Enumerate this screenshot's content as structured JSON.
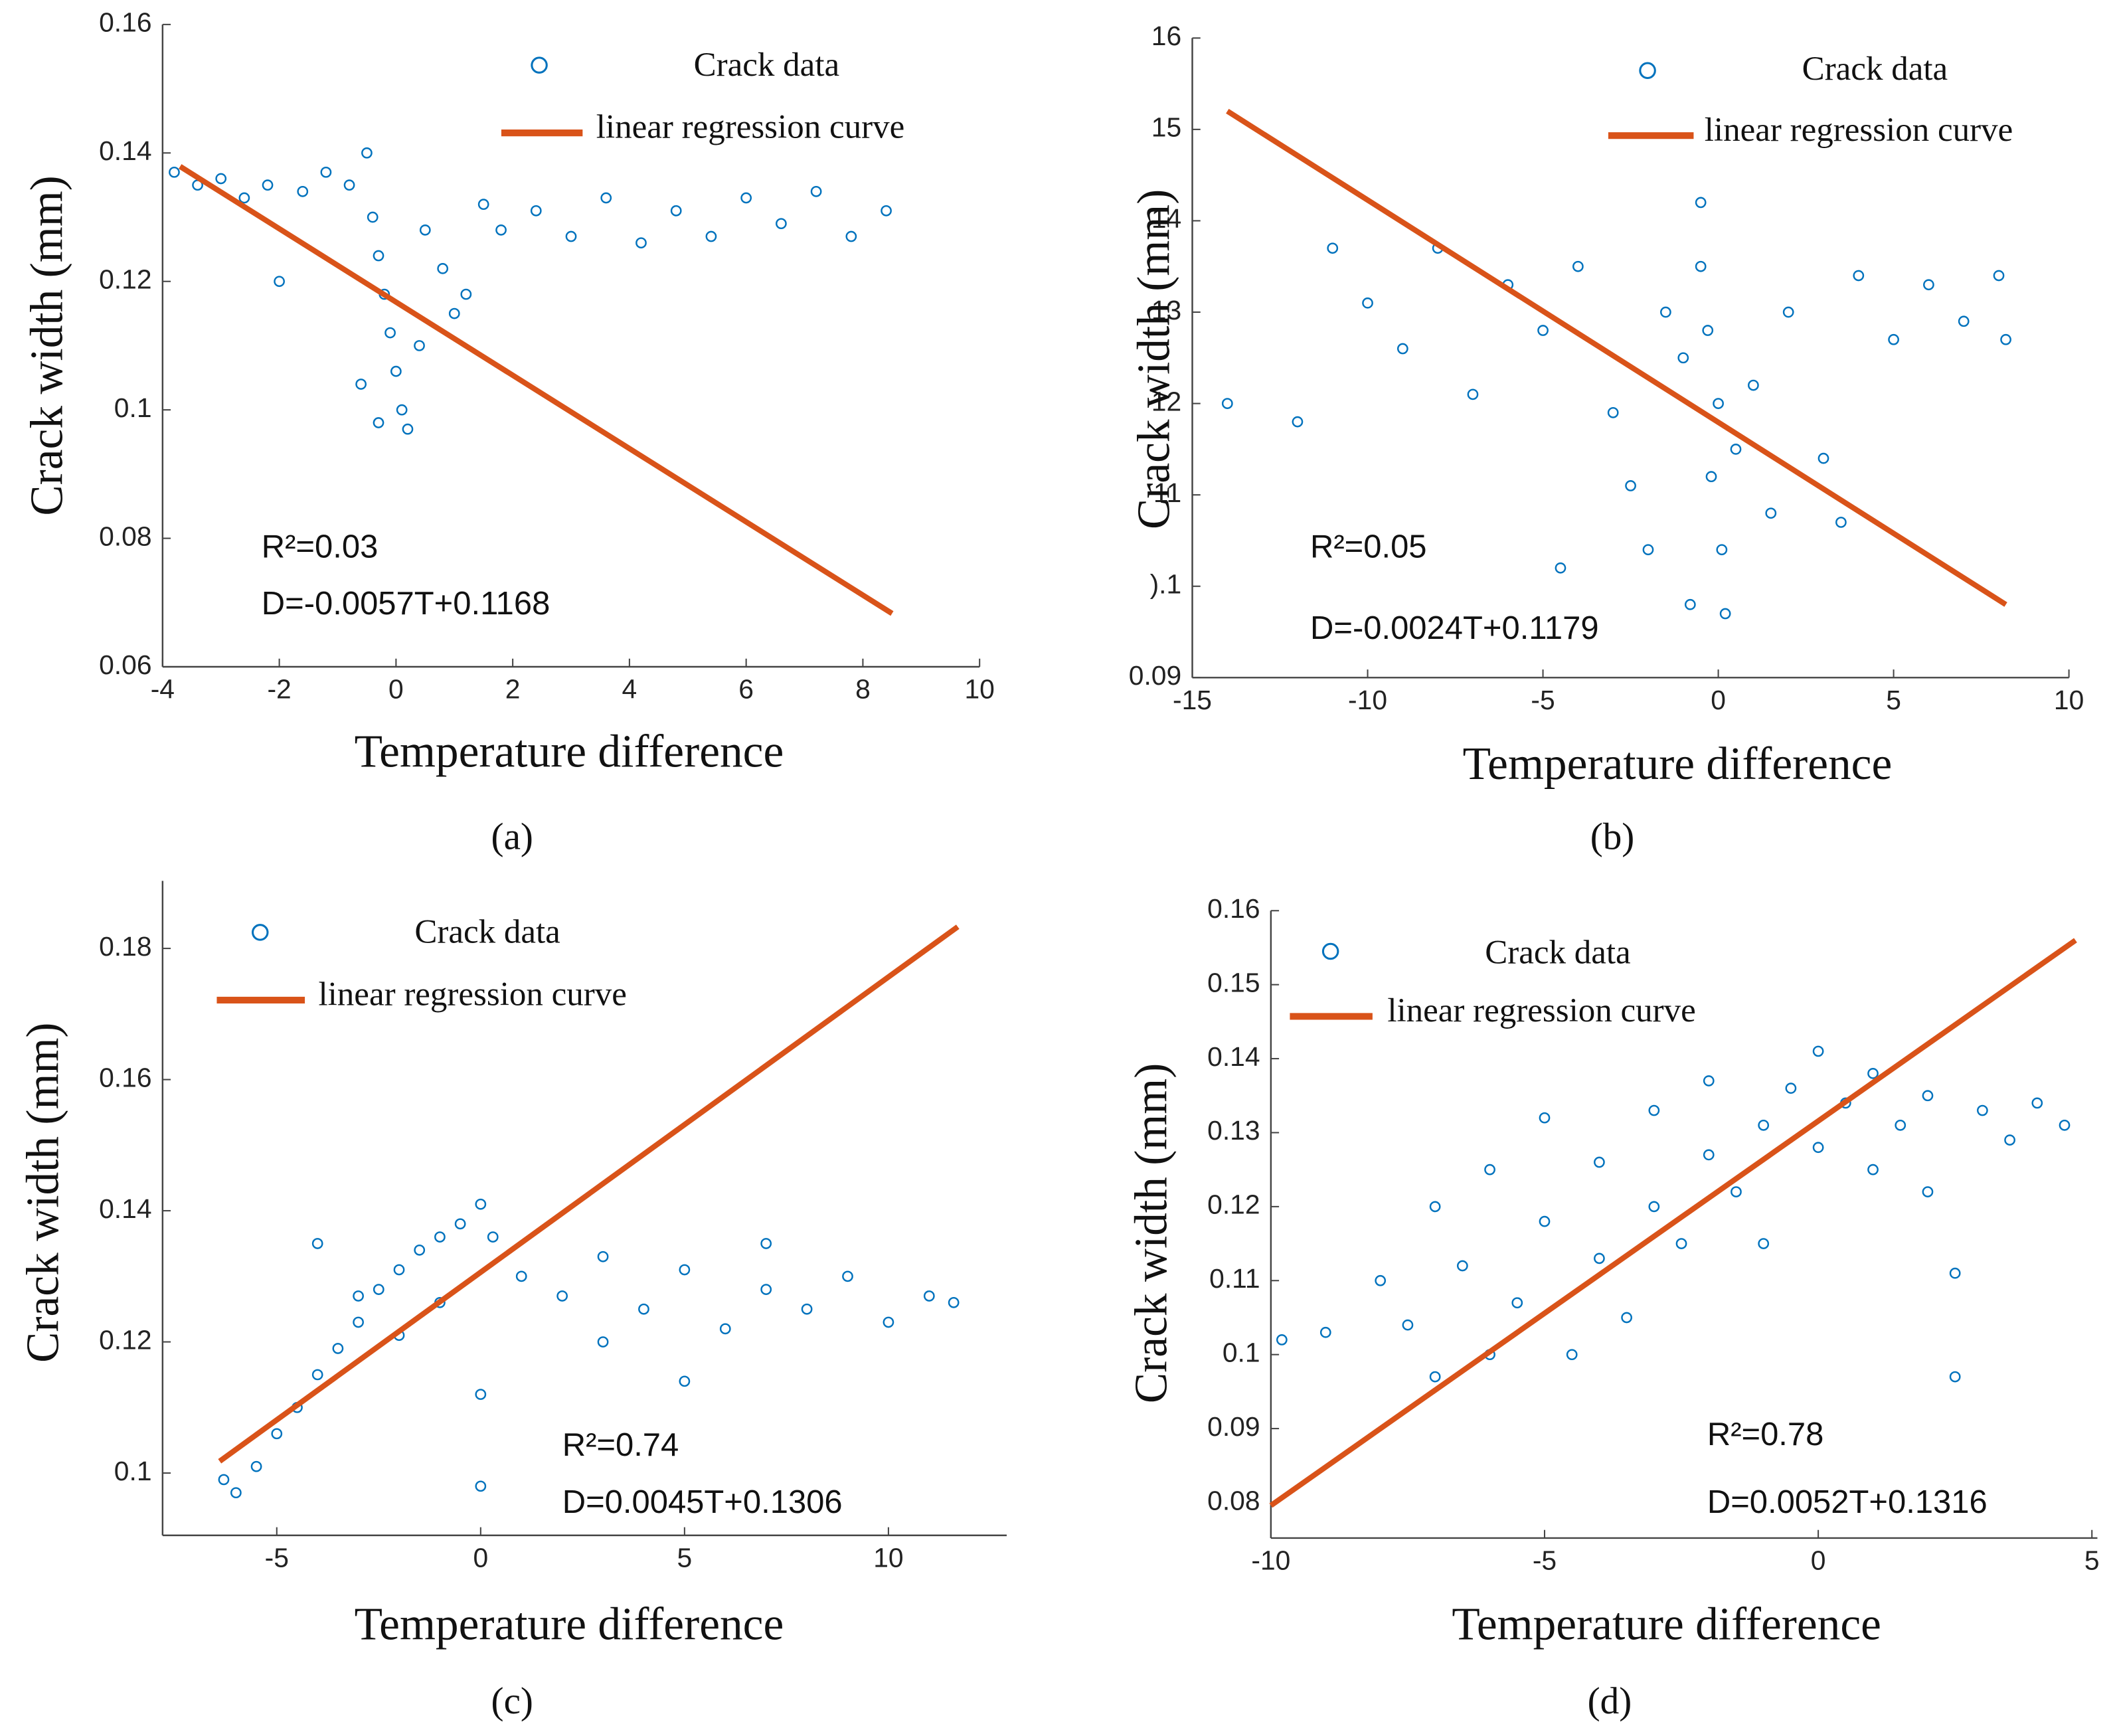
{
  "chart_data": [
    {
      "type": "scatter",
      "caption": "(a)",
      "xlabel": "Temperature difference",
      "ylabel": "Crack width (mm)",
      "annotations": [
        "R²=0.03",
        "D=-0.0057T+0.1168"
      ],
      "xlim": [
        -4,
        10
      ],
      "ylim": [
        0.06,
        0.16
      ],
      "xticks": [
        -4,
        -2,
        0,
        2,
        4,
        6,
        8,
        10
      ],
      "yticks": [
        0.06,
        0.08,
        0.1,
        0.12,
        0.14,
        0.16
      ],
      "series": [
        {
          "name": "Crack data",
          "color": "#0072bd",
          "x": [
            -3.8,
            -3.4,
            -3.0,
            -2.6,
            -2.2,
            -2.0,
            -1.6,
            -1.2,
            -0.8,
            -0.5,
            -0.4,
            -0.3,
            -0.2,
            -0.1,
            0.0,
            0.1,
            0.2,
            -0.3,
            -0.6,
            0.4,
            0.5,
            0.8,
            1.0,
            1.2,
            1.5,
            1.8,
            2.4,
            3.0,
            3.6,
            4.2,
            4.8,
            5.4,
            6.0,
            6.6,
            7.2,
            7.8,
            8.4
          ],
          "values": [
            0.137,
            0.135,
            0.136,
            0.133,
            0.135,
            0.12,
            0.134,
            0.137,
            0.135,
            0.14,
            0.13,
            0.124,
            0.118,
            0.112,
            0.106,
            0.1,
            0.097,
            0.098,
            0.104,
            0.11,
            0.128,
            0.122,
            0.115,
            0.118,
            0.132,
            0.128,
            0.131,
            0.127,
            0.133,
            0.126,
            0.131,
            0.127,
            0.133,
            0.129,
            0.134,
            0.127,
            0.131
          ]
        },
        {
          "name": "linear regression curve",
          "color": "#d95319",
          "x": [
            -3.7,
            8.5
          ],
          "values": [
            0.1379,
            0.0683
          ]
        }
      ]
    },
    {
      "type": "scatter",
      "caption": "(b)",
      "xlabel": "Temperature difference",
      "ylabel": "Crack width (mm)",
      "annotations": [
        "R²=0.05",
        "D=-0.0024T+0.1179"
      ],
      "xlim": [
        -15,
        10
      ],
      "ylim": [
        0.09,
        0.16
      ],
      "xticks": [
        -15,
        -10,
        -5,
        0,
        5,
        10
      ],
      "yticks": [
        0.09,
        {
          "value": 0.1,
          "label": ").1"
        },
        {
          "value": 0.11,
          "label": "11"
        },
        {
          "value": 0.12,
          "label": "12"
        },
        {
          "value": 0.13,
          "label": "13"
        },
        {
          "value": 0.14,
          "label": "14"
        },
        {
          "value": 0.15,
          "label": "15"
        },
        {
          "value": 0.16,
          "label": "16"
        }
      ],
      "series": [
        {
          "name": "Crack data",
          "color": "#0072bd",
          "x": [
            -14,
            -12,
            -11,
            -10,
            -9,
            -8,
            -7,
            -6,
            -5,
            -4.5,
            -4,
            -3,
            -2.5,
            -2,
            -1.5,
            -1,
            -0.5,
            -0.5,
            -0.3,
            0,
            -0.2,
            0.1,
            0.2,
            -0.8,
            0.5,
            1,
            1.5,
            2,
            3,
            3.5,
            4,
            5,
            6,
            7,
            8,
            8.2
          ],
          "values": [
            0.12,
            0.118,
            0.137,
            0.131,
            0.126,
            0.137,
            0.121,
            0.133,
            0.128,
            0.102,
            0.135,
            0.119,
            0.111,
            0.104,
            0.13,
            0.125,
            0.142,
            0.135,
            0.128,
            0.12,
            0.112,
            0.104,
            0.097,
            0.098,
            0.115,
            0.122,
            0.108,
            0.13,
            0.114,
            0.107,
            0.134,
            0.127,
            0.133,
            0.129,
            0.134,
            0.127
          ]
        },
        {
          "name": "linear regression curve",
          "color": "#d95319",
          "x": [
            -14,
            8.2
          ],
          "values": [
            0.152,
            0.098
          ]
        }
      ]
    },
    {
      "type": "scatter",
      "caption": "(c)",
      "xlabel": "Temperature difference",
      "ylabel": "Crack width (mm)",
      "annotations": [
        "R²=0.74",
        "D=0.0045T+0.1306"
      ],
      "xlim": [
        -7.8,
        12.9
      ],
      "ylim": [
        0.0905,
        0.1903
      ],
      "xticks": [
        -5,
        0,
        5,
        10
      ],
      "yticks": [
        0.1,
        0.12,
        0.14,
        0.16,
        0.18
      ],
      "series": [
        {
          "name": "Crack data",
          "color": "#0072bd",
          "x": [
            -6,
            -5.5,
            -5,
            -4.5,
            -4,
            -3.5,
            -3,
            -2.5,
            -2,
            -1.5,
            -1,
            -0.5,
            0,
            0.3,
            -4,
            -3,
            -2,
            -1,
            0,
            0,
            1,
            2,
            3,
            3,
            4,
            5,
            5,
            6,
            7,
            7,
            8,
            9,
            10,
            11,
            11.6,
            -6.3
          ],
          "values": [
            0.097,
            0.101,
            0.106,
            0.11,
            0.115,
            0.119,
            0.123,
            0.128,
            0.131,
            0.134,
            0.136,
            0.138,
            0.141,
            0.136,
            0.135,
            0.127,
            0.121,
            0.126,
            0.112,
            0.098,
            0.13,
            0.127,
            0.133,
            0.12,
            0.125,
            0.131,
            0.114,
            0.122,
            0.128,
            0.135,
            0.125,
            0.13,
            0.123,
            0.127,
            0.126,
            0.099
          ]
        },
        {
          "name": "linear regression curve",
          "color": "#d95319",
          "x": [
            -6.4,
            11.7
          ],
          "values": [
            0.1018,
            0.1833
          ]
        }
      ]
    },
    {
      "type": "scatter",
      "caption": "(d)",
      "xlabel": "Temperature difference",
      "ylabel": "Crack width (mm)",
      "annotations": [
        "R²=0.78",
        "D=0.0052T+0.1316"
      ],
      "xlim": [
        -10,
        5.1
      ],
      "ylim": [
        0.0752,
        0.16
      ],
      "xticks": [
        -10,
        -5,
        0,
        5
      ],
      "yticks": [
        0.08,
        0.09,
        0.1,
        0.11,
        0.12,
        0.13,
        0.14,
        0.15,
        0.16
      ],
      "series": [
        {
          "name": "Crack data",
          "color": "#0072bd",
          "x": [
            -9.8,
            -9,
            -8,
            -7.5,
            -7,
            -7,
            -6.5,
            -6,
            -6,
            -5.5,
            -5,
            -5,
            -4.5,
            -4,
            -4,
            -3.5,
            -3,
            -3,
            -2.5,
            -2,
            -2,
            -1.5,
            -1,
            -1,
            -0.5,
            0,
            0,
            0.5,
            1,
            1,
            1.5,
            2,
            2,
            2.5,
            2.5,
            3,
            3.5,
            4,
            4.5
          ],
          "values": [
            0.102,
            0.103,
            0.11,
            0.104,
            0.097,
            0.12,
            0.112,
            0.1,
            0.125,
            0.107,
            0.118,
            0.132,
            0.1,
            0.113,
            0.126,
            0.105,
            0.12,
            0.133,
            0.115,
            0.127,
            0.137,
            0.122,
            0.131,
            0.115,
            0.136,
            0.141,
            0.128,
            0.134,
            0.138,
            0.125,
            0.131,
            0.135,
            0.122,
            0.111,
            0.097,
            0.133,
            0.129,
            0.134,
            0.131
          ]
        },
        {
          "name": "linear regression curve",
          "color": "#d95319",
          "x": [
            -10,
            4.7
          ],
          "values": [
            0.0796,
            0.156
          ]
        }
      ]
    }
  ]
}
